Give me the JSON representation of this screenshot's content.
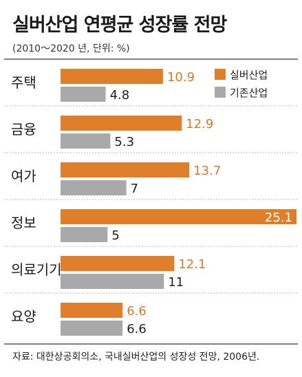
{
  "header": {
    "title": "실버산업 연평균 성장률 전망",
    "subtitle": "(2010～2020 년, 단위: %)"
  },
  "footer": {
    "source": "자료: 대한상공회의소, 국내실버산업의 성장성 전망, 2006년."
  },
  "chart_data": {
    "type": "bar",
    "orientation": "horizontal",
    "categories": [
      "주택",
      "금융",
      "여가",
      "정보",
      "의료기기",
      "요양"
    ],
    "series": [
      {
        "name": "실버산업",
        "values": [
          10.9,
          12.9,
          13.7,
          25.1,
          12.1,
          6.6
        ],
        "color": "#e07f2b"
      },
      {
        "name": "기존산업",
        "values": [
          4.8,
          5.3,
          7,
          5,
          11,
          6.6
        ],
        "color": "#a9a9a9"
      }
    ],
    "value_labels": [
      [
        "10.9",
        "12.9",
        "13.7",
        "25.1",
        "12.1",
        "6.6"
      ],
      [
        "4.8",
        "5.3",
        "7",
        "5",
        "11",
        "6.6"
      ]
    ],
    "xlim": [
      0,
      25.1
    ],
    "grid": false,
    "legend": "top-right"
  }
}
